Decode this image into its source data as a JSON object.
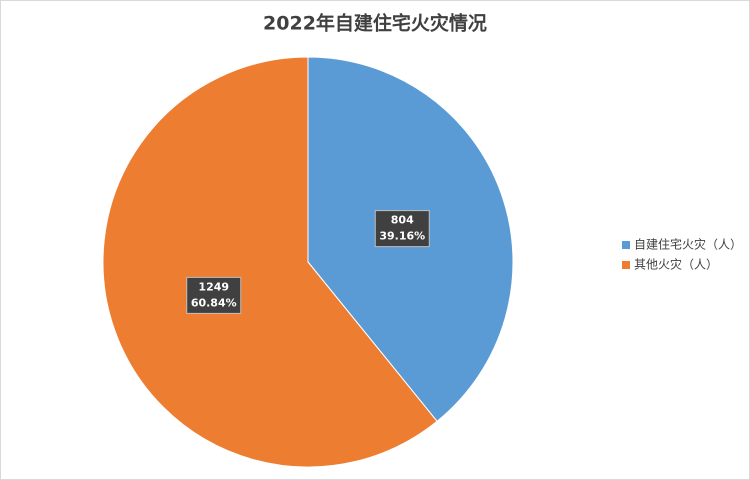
{
  "chart_data": {
    "type": "pie",
    "title": "2022年自建住宅火灾情况",
    "categories": [
      "自建住宅火灾（人）",
      "其他火灾（人）"
    ],
    "values": [
      804,
      1249
    ],
    "percent_labels": [
      "39.16%",
      "60.84%"
    ],
    "colors": [
      "#5b9bd5",
      "#ed7d31"
    ]
  }
}
